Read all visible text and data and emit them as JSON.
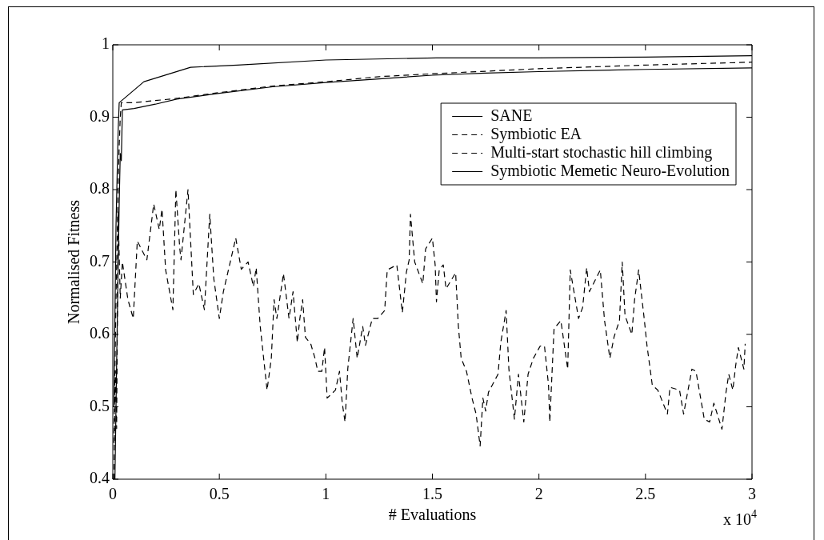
{
  "chart_data": {
    "type": "line",
    "xlabel": "# Evaluations",
    "ylabel": "Normalised Fitness",
    "xlim": [
      0,
      3
    ],
    "ylim": [
      0.4,
      1
    ],
    "xticks": [
      0,
      0.5,
      1,
      1.5,
      2,
      2.5,
      3
    ],
    "yticks": [
      0.4,
      0.5,
      0.6,
      0.7,
      0.8,
      0.9,
      1
    ],
    "legend": "top right",
    "marker": "none",
    "grid": false,
    "annotations": [
      "x 10$^{4}$"
    ],
    "series": [
      {
        "name": "SANE",
        "color": "#000000",
        "line_style": "solid",
        "x": [
          0.01,
          0.02,
          0.03,
          0.035,
          0.04,
          0.045,
          0.1,
          0.2,
          0.3,
          0.5,
          0.75,
          1.0,
          1.25,
          1.5,
          1.75,
          2.0,
          2.5,
          3.0
        ],
        "values": [
          0.4,
          0.6,
          0.78,
          0.85,
          0.84,
          0.91,
          0.912,
          0.918,
          0.925,
          0.933,
          0.942,
          0.948,
          0.953,
          0.958,
          0.961,
          0.963,
          0.966,
          0.968
        ]
      },
      {
        "name": "Symbiotic EA",
        "color": "#000000",
        "line_style": "dashed",
        "x": [
          0.005,
          0.015,
          0.025,
          0.03,
          0.035,
          0.04,
          0.1,
          0.3,
          0.5,
          0.75,
          1.0,
          1.25,
          1.5,
          2.0,
          2.5,
          3.0
        ],
        "values": [
          0.45,
          0.65,
          0.8,
          0.86,
          0.9,
          0.92,
          0.92,
          0.926,
          0.934,
          0.943,
          0.949,
          0.956,
          0.96,
          0.967,
          0.972,
          0.976
        ]
      },
      {
        "name": "Multi-start stochastic hill climbing",
        "color": "#000000",
        "line_style": "dashed",
        "x": [
          0.005,
          0.012,
          0.018,
          0.025,
          0.035,
          0.045,
          0.071,
          0.096,
          0.115,
          0.16,
          0.192,
          0.218,
          0.231,
          0.248,
          0.282,
          0.296,
          0.314,
          0.32,
          0.353,
          0.378,
          0.404,
          0.43,
          0.455,
          0.474,
          0.5,
          0.519,
          0.545,
          0.577,
          0.603,
          0.635,
          0.66,
          0.673,
          0.692,
          0.724,
          0.744,
          0.757,
          0.77,
          0.801,
          0.827,
          0.846,
          0.866,
          0.878,
          0.891,
          0.904,
          0.929,
          0.949,
          0.962,
          0.981,
          0.994,
          1.006,
          1.045,
          1.064,
          1.077,
          1.09,
          1.103,
          1.128,
          1.147,
          1.173,
          1.186,
          1.218,
          1.244,
          1.276,
          1.288,
          1.333,
          1.359,
          1.378,
          1.391,
          1.397,
          1.417,
          1.455,
          1.468,
          1.5,
          1.513,
          1.519,
          1.532,
          1.551,
          1.564,
          1.609,
          1.622,
          1.635,
          1.66,
          1.686,
          1.705,
          1.724,
          1.737,
          1.75,
          1.763,
          1.808,
          1.821,
          1.846,
          1.859,
          1.885,
          1.904,
          1.929,
          1.949,
          1.974,
          2.006,
          2.026,
          2.045,
          2.051,
          2.071,
          2.103,
          2.135,
          2.147,
          2.186,
          2.205,
          2.224,
          2.237,
          2.288,
          2.308,
          2.333,
          2.353,
          2.378,
          2.391,
          2.404,
          2.436,
          2.449,
          2.468,
          2.494,
          2.507,
          2.532,
          2.558,
          2.603,
          2.615,
          2.66,
          2.679,
          2.718,
          2.737,
          2.776,
          2.801,
          2.821,
          2.859,
          2.878,
          2.891,
          2.91,
          2.923,
          2.936,
          2.962,
          2.968
        ],
        "values": [
          0.4,
          0.55,
          0.47,
          0.77,
          0.65,
          0.7,
          0.648,
          0.622,
          0.729,
          0.703,
          0.78,
          0.745,
          0.773,
          0.689,
          0.634,
          0.8,
          0.72,
          0.703,
          0.8,
          0.655,
          0.67,
          0.634,
          0.766,
          0.677,
          0.622,
          0.659,
          0.692,
          0.733,
          0.69,
          0.7,
          0.666,
          0.692,
          0.611,
          0.523,
          0.567,
          0.648,
          0.622,
          0.684,
          0.622,
          0.659,
          0.589,
          0.622,
          0.648,
          0.596,
          0.587,
          0.567,
          0.549,
          0.549,
          0.582,
          0.512,
          0.523,
          0.549,
          0.505,
          0.479,
          0.553,
          0.622,
          0.567,
          0.611,
          0.585,
          0.622,
          0.622,
          0.633,
          0.689,
          0.696,
          0.63,
          0.686,
          0.703,
          0.766,
          0.7,
          0.67,
          0.718,
          0.733,
          0.696,
          0.645,
          0.689,
          0.696,
          0.663,
          0.685,
          0.611,
          0.567,
          0.549,
          0.512,
          0.49,
          0.446,
          0.512,
          0.494,
          0.52,
          0.545,
          0.589,
          0.633,
          0.552,
          0.483,
          0.545,
          0.479,
          0.545,
          0.567,
          0.584,
          0.584,
          0.53,
          0.479,
          0.608,
          0.619,
          0.552,
          0.689,
          0.622,
          0.637,
          0.692,
          0.659,
          0.689,
          0.619,
          0.567,
          0.597,
          0.619,
          0.7,
          0.626,
          0.6,
          0.648,
          0.689,
          0.622,
          0.585,
          0.53,
          0.523,
          0.49,
          0.527,
          0.523,
          0.49,
          0.552,
          0.549,
          0.483,
          0.479,
          0.505,
          0.469,
          0.52,
          0.545,
          0.523,
          0.556,
          0.582,
          0.552,
          0.587
        ]
      },
      {
        "name": "Symbiotic Memetic Neuro-Evolution",
        "color": "#000000",
        "line_style": "solid",
        "x": [
          0.005,
          0.015,
          0.025,
          0.03,
          0.146,
          0.365,
          0.585,
          1.0,
          1.52,
          2.0,
          2.5,
          3.0
        ],
        "values": [
          0.5,
          0.75,
          0.88,
          0.92,
          0.949,
          0.969,
          0.972,
          0.979,
          0.982,
          0.982,
          0.983,
          0.985
        ]
      }
    ]
  }
}
